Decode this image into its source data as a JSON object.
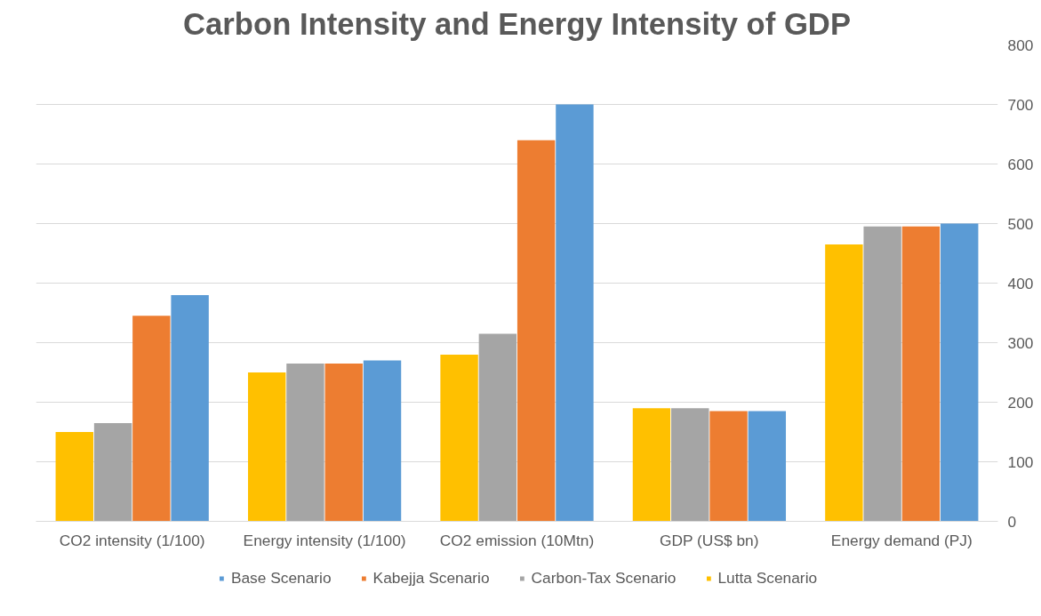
{
  "chart_data": {
    "type": "bar",
    "title": "Carbon Intensity and Energy Intensity of GDP",
    "categories": [
      "CO2 intensity (1/100)",
      "Energy intensity (1/100)",
      "CO2 emission (10Mtn)",
      "GDP (US$ bn)",
      "Energy demand (PJ)"
    ],
    "series": [
      {
        "name": "Lutta Scenario",
        "color": "#ffc000",
        "values": [
          150,
          250,
          280,
          190,
          465
        ]
      },
      {
        "name": "Carbon-Tax Scenario",
        "color": "#a5a5a5",
        "values": [
          165,
          265,
          315,
          190,
          495
        ]
      },
      {
        "name": "Kabejja Scenario",
        "color": "#ed7d31",
        "values": [
          345,
          265,
          640,
          185,
          495
        ]
      },
      {
        "name": "Base Scenario",
        "color": "#5b9bd5",
        "values": [
          380,
          270,
          700,
          185,
          500
        ]
      }
    ],
    "ylim": [
      0,
      800
    ],
    "yticks": [
      0,
      100,
      200,
      300,
      400,
      500,
      600,
      700,
      800
    ],
    "grid": "y",
    "legend": "bottom"
  }
}
